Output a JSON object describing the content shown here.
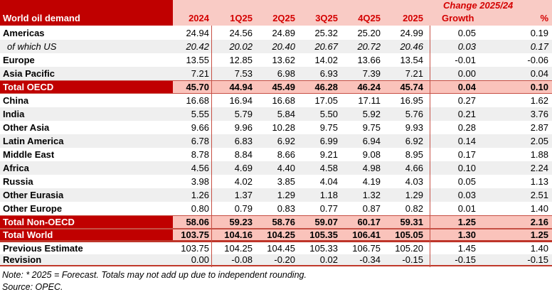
{
  "title": "World oil demand",
  "change_header": "Change 2025/24",
  "columns": [
    "2024",
    "1Q25",
    "2Q25",
    "3Q25",
    "4Q25",
    "2025",
    "Growth",
    "%"
  ],
  "notes": {
    "note": "Note: * 2025 = Forecast. Totals may not add up due to independent rounding.",
    "source": "Source: OPEC."
  },
  "colors": {
    "dark_red": "#C00000",
    "header_pink": "#F9CBC5",
    "total_pink": "#FAC3BB",
    "red_text": "#D40000",
    "alt_row_gray": "#EFEFEF",
    "rule_red": "#C65045"
  },
  "chart_data": {
    "type": "table",
    "title": "World oil demand",
    "columns": [
      "2024",
      "1Q25",
      "2Q25",
      "3Q25",
      "4Q25",
      "2025",
      "Growth",
      "%"
    ],
    "change_header_span": [
      "Growth",
      "%"
    ],
    "rows": [
      {
        "label": "Americas",
        "style": "data",
        "shade": false,
        "values": [
          "24.94",
          "24.56",
          "24.89",
          "25.32",
          "25.20",
          "24.99",
          "0.05",
          "0.19"
        ]
      },
      {
        "label": "of which US",
        "style": "italic",
        "shade": true,
        "values": [
          "20.42",
          "20.02",
          "20.40",
          "20.67",
          "20.72",
          "20.46",
          "0.03",
          "0.17"
        ]
      },
      {
        "label": "Europe",
        "style": "data",
        "shade": false,
        "values": [
          "13.55",
          "12.85",
          "13.62",
          "14.02",
          "13.66",
          "13.54",
          "-0.01",
          "-0.06"
        ]
      },
      {
        "label": "Asia Pacific",
        "style": "data",
        "shade": true,
        "values": [
          "7.21",
          "7.53",
          "6.98",
          "6.93",
          "7.39",
          "7.21",
          "0.00",
          "0.04"
        ]
      },
      {
        "label": "Total OECD",
        "style": "total",
        "shade": false,
        "values": [
          "45.70",
          "44.94",
          "45.49",
          "46.28",
          "46.24",
          "45.74",
          "0.04",
          "0.10"
        ]
      },
      {
        "label": "China",
        "style": "data",
        "shade": false,
        "values": [
          "16.68",
          "16.94",
          "16.68",
          "17.05",
          "17.11",
          "16.95",
          "0.27",
          "1.62"
        ]
      },
      {
        "label": "India",
        "style": "data",
        "shade": true,
        "values": [
          "5.55",
          "5.79",
          "5.84",
          "5.50",
          "5.92",
          "5.76",
          "0.21",
          "3.76"
        ]
      },
      {
        "label": "Other Asia",
        "style": "data",
        "shade": false,
        "values": [
          "9.66",
          "9.96",
          "10.28",
          "9.75",
          "9.75",
          "9.93",
          "0.28",
          "2.87"
        ]
      },
      {
        "label": "Latin America",
        "style": "data",
        "shade": true,
        "values": [
          "6.78",
          "6.83",
          "6.92",
          "6.99",
          "6.94",
          "6.92",
          "0.14",
          "2.05"
        ]
      },
      {
        "label": "Middle East",
        "style": "data",
        "shade": false,
        "values": [
          "8.78",
          "8.84",
          "8.66",
          "9.21",
          "9.08",
          "8.95",
          "0.17",
          "1.88"
        ]
      },
      {
        "label": "Africa",
        "style": "data",
        "shade": true,
        "values": [
          "4.56",
          "4.69",
          "4.40",
          "4.58",
          "4.98",
          "4.66",
          "0.10",
          "2.24"
        ]
      },
      {
        "label": "Russia",
        "style": "data",
        "shade": false,
        "values": [
          "3.98",
          "4.02",
          "3.85",
          "4.04",
          "4.19",
          "4.03",
          "0.05",
          "1.13"
        ]
      },
      {
        "label": "Other Eurasia",
        "style": "data",
        "shade": true,
        "values": [
          "1.26",
          "1.37",
          "1.29",
          "1.18",
          "1.32",
          "1.29",
          "0.03",
          "2.51"
        ]
      },
      {
        "label": "Other Europe",
        "style": "data",
        "shade": false,
        "values": [
          "0.80",
          "0.79",
          "0.83",
          "0.77",
          "0.87",
          "0.82",
          "0.01",
          "1.40"
        ]
      },
      {
        "label": "Total Non-OECD",
        "style": "total",
        "shade": false,
        "values": [
          "58.06",
          "59.23",
          "58.76",
          "59.07",
          "60.17",
          "59.31",
          "1.25",
          "2.16"
        ]
      },
      {
        "label": "Total World",
        "style": "grand-total",
        "shade": false,
        "values": [
          "103.75",
          "104.16",
          "104.25",
          "105.35",
          "106.41",
          "105.05",
          "1.30",
          "1.25"
        ]
      },
      {
        "label": "Previous Estimate",
        "style": "estimate",
        "shade": false,
        "values": [
          "103.75",
          "104.25",
          "104.45",
          "105.33",
          "106.75",
          "105.20",
          "1.45",
          "1.40"
        ]
      },
      {
        "label": "Revision",
        "style": "estimate",
        "shade": true,
        "values": [
          "0.00",
          "-0.08",
          "-0.20",
          "0.02",
          "-0.34",
          "-0.15",
          "-0.15",
          "-0.15"
        ]
      }
    ]
  }
}
